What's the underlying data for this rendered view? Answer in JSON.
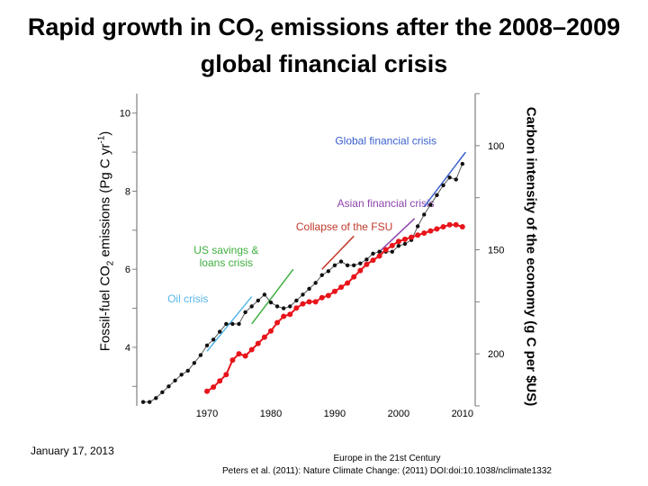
{
  "title": {
    "line1_pre": "Rapid growth in CO",
    "line1_sub": "2",
    "line1_post": " emissions after the 2008–2009",
    "line2": "global financial crisis"
  },
  "footer": {
    "date": "January 17, 2013",
    "source_line1": "Europe in the 21st Century",
    "source_line2": "Peters et al. (2011): Nature Climate Change: (2011) DOI:doi:10.1038/nclimate1332"
  },
  "colors": {
    "black_series": "#111111",
    "red_series": "#e8141a",
    "axis": "#808080",
    "oil_crisis": "#55b7ea",
    "us_savings": "#3fae3f",
    "fsu": "#c0392b",
    "asian": "#8e44ad",
    "global": "#3a5fcd"
  },
  "chart_data": {
    "type": "scatter",
    "title": "Rapid growth in CO2 emissions after the 2008–2009 global financial crisis",
    "xlabel": "",
    "ylabel": "Fossil-fuel CO2 emissions (Pg C yr-1)",
    "ylabel_right": "Carbon intensity of the economy (g C per $US)",
    "xlim": [
      1959,
      2012
    ],
    "ylim": [
      2.5,
      10.5
    ],
    "ylim_right_inverted": [
      225,
      75
    ],
    "x_ticks": [
      1970,
      1980,
      1990,
      2000,
      2010
    ],
    "y_ticks_left": [
      4,
      6,
      8,
      10
    ],
    "y_ticks_right": [
      100,
      150,
      200
    ],
    "series": [
      {
        "name": "Fossil-fuel CO2 emissions",
        "axis": "left",
        "color": "#111111",
        "x": [
          1960,
          1961,
          1962,
          1963,
          1964,
          1965,
          1966,
          1967,
          1968,
          1969,
          1970,
          1971,
          1972,
          1973,
          1974,
          1975,
          1976,
          1977,
          1978,
          1979,
          1980,
          1981,
          1982,
          1983,
          1984,
          1985,
          1986,
          1987,
          1988,
          1989,
          1990,
          1991,
          1992,
          1993,
          1994,
          1995,
          1996,
          1997,
          1998,
          1999,
          2000,
          2001,
          2002,
          2003,
          2004,
          2005,
          2006,
          2007,
          2008,
          2009,
          2010
        ],
        "values": [
          2.6,
          2.6,
          2.7,
          2.85,
          3.0,
          3.15,
          3.3,
          3.4,
          3.6,
          3.8,
          4.05,
          4.2,
          4.4,
          4.6,
          4.6,
          4.6,
          4.9,
          5.05,
          5.2,
          5.35,
          5.15,
          5.05,
          5.0,
          5.05,
          5.2,
          5.35,
          5.5,
          5.65,
          5.85,
          5.95,
          6.1,
          6.2,
          6.1,
          6.1,
          6.15,
          6.25,
          6.4,
          6.45,
          6.45,
          6.45,
          6.6,
          6.65,
          6.75,
          7.1,
          7.4,
          7.65,
          7.9,
          8.15,
          8.35,
          8.3,
          8.7
        ]
      },
      {
        "name": "Carbon intensity of the economy",
        "axis": "right",
        "color": "#e8141a",
        "x": [
          1970,
          1971,
          1972,
          1973,
          1974,
          1975,
          1976,
          1977,
          1978,
          1979,
          1980,
          1981,
          1982,
          1983,
          1984,
          1985,
          1986,
          1987,
          1988,
          1989,
          1990,
          1991,
          1992,
          1993,
          1994,
          1995,
          1996,
          1997,
          1998,
          1999,
          2000,
          2001,
          2002,
          2003,
          2004,
          2005,
          2006,
          2007,
          2008,
          2009,
          2010
        ],
        "values": [
          218,
          216,
          213,
          210,
          203,
          200,
          201,
          198,
          195,
          192,
          189,
          185,
          182,
          181,
          178,
          176,
          175,
          175,
          173,
          172,
          170,
          168,
          166,
          163,
          160,
          157,
          155,
          153,
          150,
          148,
          146,
          145,
          144,
          143,
          142,
          141,
          140,
          139,
          138,
          138,
          139
        ]
      }
    ],
    "annotations": [
      {
        "label": "Oil crisis",
        "color": "#55b7ea",
        "x_start": 1970,
        "y_start": 3.9,
        "x_end": 1977,
        "y_end": 5.3,
        "text_x": 1967,
        "text_y": 5.15
      },
      {
        "label": "US savings &",
        "label2": "loans crisis",
        "color": "#3fae3f",
        "x_start": 1977,
        "y_start": 4.6,
        "x_end": 1983.5,
        "y_end": 6.0,
        "text_x": 1973,
        "text_y": 6.4
      },
      {
        "label": "Collapse of the FSU",
        "color": "#c0392b",
        "x_start": 1988,
        "y_start": 6.0,
        "x_end": 1993,
        "y_end": 6.85,
        "text_x": 1991.5,
        "text_y": 7.0
      },
      {
        "label": "Asian financial crisis",
        "color": "#8e44ad",
        "x_start": 1997,
        "y_start": 6.45,
        "x_end": 2002.5,
        "y_end": 7.3,
        "text_x": 1998,
        "text_y": 7.6
      },
      {
        "label": "Global financial crisis",
        "color": "#3a5fcd",
        "x_start": 2004,
        "y_start": 7.6,
        "x_end": 2010.5,
        "y_end": 9.0,
        "text_x": 1998,
        "text_y": 9.2
      }
    ],
    "grid": false,
    "legend": "none"
  }
}
